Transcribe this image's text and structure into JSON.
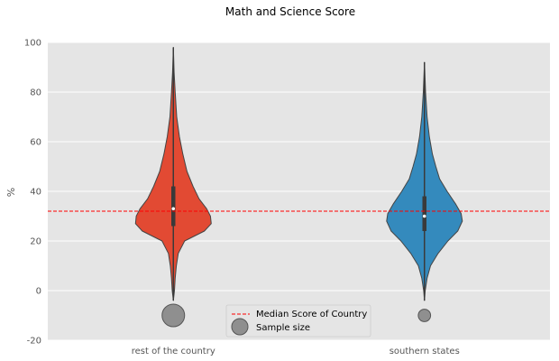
{
  "chart_data": {
    "type": "violin",
    "title": "Math and Science Score",
    "xlabel": "",
    "ylabel": "%",
    "ylim": [
      -20,
      100
    ],
    "yticks": [
      -20,
      0,
      20,
      40,
      60,
      80,
      100
    ],
    "grid": true,
    "legend_position": "bottom-center",
    "categories": [
      "rest of the country",
      "southern states"
    ],
    "series": [
      {
        "category": "rest of the country",
        "color": "#E24A33",
        "min": -4,
        "max": 98,
        "q1": 26,
        "median": 33,
        "q3": 42,
        "sample_size_relative": 1.0,
        "density": [
          [
            -4,
            0.0
          ],
          [
            0,
            0.03
          ],
          [
            5,
            0.05
          ],
          [
            10,
            0.08
          ],
          [
            15,
            0.13
          ],
          [
            20,
            0.3
          ],
          [
            24,
            0.82
          ],
          [
            27,
            1.0
          ],
          [
            30,
            0.98
          ],
          [
            33,
            0.88
          ],
          [
            37,
            0.68
          ],
          [
            42,
            0.52
          ],
          [
            48,
            0.36
          ],
          [
            55,
            0.25
          ],
          [
            62,
            0.16
          ],
          [
            70,
            0.09
          ],
          [
            80,
            0.05
          ],
          [
            88,
            0.02
          ],
          [
            98,
            0.0
          ]
        ]
      },
      {
        "category": "southern states",
        "color": "#348ABD",
        "min": -4,
        "max": 92,
        "q1": 24,
        "median": 30,
        "q3": 38,
        "sample_size_relative": 0.3,
        "density": [
          [
            -4,
            0.0
          ],
          [
            0,
            0.02
          ],
          [
            5,
            0.07
          ],
          [
            10,
            0.16
          ],
          [
            15,
            0.36
          ],
          [
            20,
            0.62
          ],
          [
            24,
            0.88
          ],
          [
            28,
            1.0
          ],
          [
            31,
            0.97
          ],
          [
            35,
            0.82
          ],
          [
            40,
            0.6
          ],
          [
            45,
            0.4
          ],
          [
            50,
            0.3
          ],
          [
            55,
            0.21
          ],
          [
            62,
            0.13
          ],
          [
            70,
            0.07
          ],
          [
            80,
            0.03
          ],
          [
            92,
            0.0
          ]
        ]
      }
    ],
    "reference_line": {
      "label": "Median Score of Country",
      "y": 32,
      "color": "#ff0000"
    },
    "sample_size_label": "Sample size",
    "sample_marker_y": -10
  }
}
